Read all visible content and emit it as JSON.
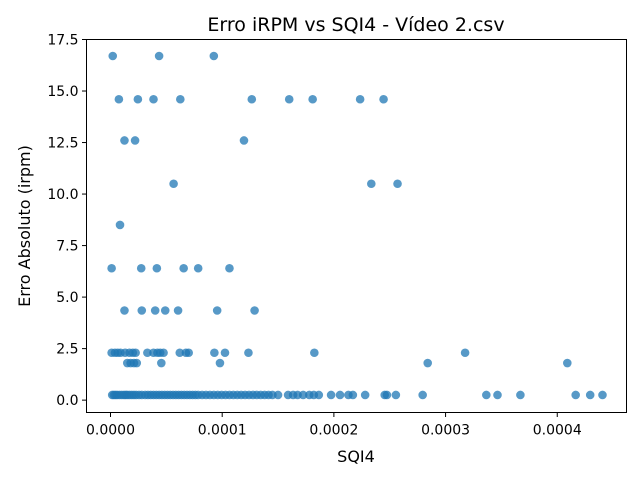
{
  "chart_data": {
    "type": "scatter",
    "title": "Erro iRPM vs SQI4 - Vídeo 2.csv",
    "xlabel": "SQI4",
    "ylabel": "Erro Absoluto (irpm)",
    "xlim": [
      -2.15e-05,
      0.000462
    ],
    "ylim": [
      -0.6,
      17.5
    ],
    "xticks": [
      0.0,
      0.0001,
      0.0002,
      0.0003,
      0.0004
    ],
    "xtick_labels": [
      "0.0000",
      "0.0001",
      "0.0002",
      "0.0003",
      "0.0004"
    ],
    "yticks": [
      0.0,
      2.5,
      5.0,
      7.5,
      10.0,
      12.5,
      15.0,
      17.5
    ],
    "ytick_labels": [
      "0.0",
      "2.5",
      "5.0",
      "7.5",
      "10.0",
      "12.5",
      "15.0",
      "17.5"
    ],
    "grid": false,
    "marker_color": "#1f77b4",
    "marker_alpha": 0.75,
    "points": [
      [
        2e-06,
        16.7
      ],
      [
        4.35e-05,
        16.7
      ],
      [
        9.25e-05,
        16.7
      ],
      [
        7.5e-06,
        14.6
      ],
      [
        2.45e-05,
        14.6
      ],
      [
        3.85e-05,
        14.6
      ],
      [
        6.25e-05,
        14.6
      ],
      [
        0.0001265,
        14.6
      ],
      [
        0.00016,
        14.6
      ],
      [
        0.000181,
        14.6
      ],
      [
        0.0002235,
        14.6
      ],
      [
        0.0002445,
        14.6
      ],
      [
        1.25e-05,
        12.6
      ],
      [
        2.2e-05,
        12.6
      ],
      [
        0.0001195,
        12.6
      ],
      [
        5.65e-05,
        10.5
      ],
      [
        0.0002335,
        10.5
      ],
      [
        0.000257,
        10.5
      ],
      [
        8.5e-06,
        8.5
      ],
      [
        1e-06,
        6.4
      ],
      [
        2.75e-05,
        6.4
      ],
      [
        4.15e-05,
        6.4
      ],
      [
        6.55e-05,
        6.4
      ],
      [
        7.85e-05,
        6.4
      ],
      [
        0.0001065,
        6.4
      ],
      [
        1.25e-05,
        4.35
      ],
      [
        2.8e-05,
        4.35
      ],
      [
        4e-05,
        4.35
      ],
      [
        4.9e-05,
        4.35
      ],
      [
        6.05e-05,
        4.35
      ],
      [
        9.55e-05,
        4.35
      ],
      [
        0.000129,
        4.35
      ],
      [
        1e-06,
        2.3
      ],
      [
        4e-06,
        2.3
      ],
      [
        6.5e-06,
        2.3
      ],
      [
        9e-06,
        2.3
      ],
      [
        1.3e-05,
        2.3
      ],
      [
        1.7e-05,
        2.3
      ],
      [
        2e-05,
        2.3
      ],
      [
        2.25e-05,
        2.3
      ],
      [
        3.3e-05,
        2.3
      ],
      [
        3.85e-05,
        2.3
      ],
      [
        4.2e-05,
        2.3
      ],
      [
        4.45e-05,
        2.3
      ],
      [
        4.75e-05,
        2.3
      ],
      [
        6.2e-05,
        2.3
      ],
      [
        6.75e-05,
        2.3
      ],
      [
        7e-05,
        2.3
      ],
      [
        9.3e-05,
        2.3
      ],
      [
        0.0001025,
        2.3
      ],
      [
        0.0001235,
        2.3
      ],
      [
        0.0001825,
        2.3
      ],
      [
        0.0003175,
        2.3
      ],
      [
        1.5e-05,
        1.8
      ],
      [
        1.8e-05,
        1.8
      ],
      [
        2.1e-05,
        1.8
      ],
      [
        2.35e-05,
        1.8
      ],
      [
        4.55e-05,
        1.8
      ],
      [
        9.8e-05,
        1.8
      ],
      [
        0.000284,
        1.8
      ],
      [
        0.000409,
        1.8
      ],
      [
        1.5e-06,
        0.25
      ],
      [
        3e-06,
        0.25
      ],
      [
        4.5e-06,
        0.25
      ],
      [
        6e-06,
        0.25
      ],
      [
        8e-06,
        0.25
      ],
      [
        1e-05,
        0.25
      ],
      [
        1.2e-05,
        0.25
      ],
      [
        1.35e-05,
        0.25
      ],
      [
        1.5e-05,
        0.25
      ],
      [
        1.7e-05,
        0.25
      ],
      [
        1.9e-05,
        0.25
      ],
      [
        2.1e-05,
        0.25
      ],
      [
        2.3e-05,
        0.25
      ],
      [
        2.55e-05,
        0.25
      ],
      [
        2.8e-05,
        0.25
      ],
      [
        3.1e-05,
        0.25
      ],
      [
        3.35e-05,
        0.25
      ],
      [
        3.6e-05,
        0.25
      ],
      [
        3.85e-05,
        0.25
      ],
      [
        4.1e-05,
        0.25
      ],
      [
        4.35e-05,
        0.25
      ],
      [
        4.6e-05,
        0.25
      ],
      [
        4.85e-05,
        0.25
      ],
      [
        5.1e-05,
        0.25
      ],
      [
        5.35e-05,
        0.25
      ],
      [
        5.6e-05,
        0.25
      ],
      [
        5.85e-05,
        0.25
      ],
      [
        6.1e-05,
        0.25
      ],
      [
        6.35e-05,
        0.25
      ],
      [
        6.6e-05,
        0.25
      ],
      [
        6.85e-05,
        0.25
      ],
      [
        7.1e-05,
        0.25
      ],
      [
        7.35e-05,
        0.25
      ],
      [
        7.6e-05,
        0.25
      ],
      [
        7.85e-05,
        0.25
      ],
      [
        8.2e-05,
        0.25
      ],
      [
        8.55e-05,
        0.25
      ],
      [
        8.9e-05,
        0.25
      ],
      [
        9.25e-05,
        0.25
      ],
      [
        9.6e-05,
        0.25
      ],
      [
        9.95e-05,
        0.25
      ],
      [
        0.000103,
        0.25
      ],
      [
        0.0001065,
        0.25
      ],
      [
        0.00011,
        0.25
      ],
      [
        0.0001135,
        0.25
      ],
      [
        0.000117,
        0.25
      ],
      [
        0.0001205,
        0.25
      ],
      [
        0.000124,
        0.25
      ],
      [
        0.0001275,
        0.25
      ],
      [
        0.000131,
        0.25
      ],
      [
        0.0001345,
        0.25
      ],
      [
        0.000138,
        0.25
      ],
      [
        0.0001415,
        0.25
      ],
      [
        0.000145,
        0.25
      ],
      [
        0.00015,
        0.25
      ],
      [
        0.000159,
        0.25
      ],
      [
        0.0001635,
        0.25
      ],
      [
        0.0001675,
        0.25
      ],
      [
        0.0001725,
        0.25
      ],
      [
        0.000178,
        0.25
      ],
      [
        0.000182,
        0.25
      ],
      [
        0.0001865,
        0.25
      ],
      [
        0.0001975,
        0.25
      ],
      [
        0.0002055,
        0.25
      ],
      [
        0.000213,
        0.25
      ],
      [
        0.000217,
        0.25
      ],
      [
        0.000228,
        0.25
      ],
      [
        0.0002455,
        0.25
      ],
      [
        0.0002475,
        0.25
      ],
      [
        0.0002555,
        0.25
      ],
      [
        0.0002795,
        0.25
      ],
      [
        0.0003365,
        0.25
      ],
      [
        0.0003465,
        0.25
      ],
      [
        0.000367,
        0.25
      ],
      [
        0.0004165,
        0.25
      ],
      [
        0.0004295,
        0.25
      ],
      [
        0.0004405,
        0.25
      ]
    ]
  }
}
